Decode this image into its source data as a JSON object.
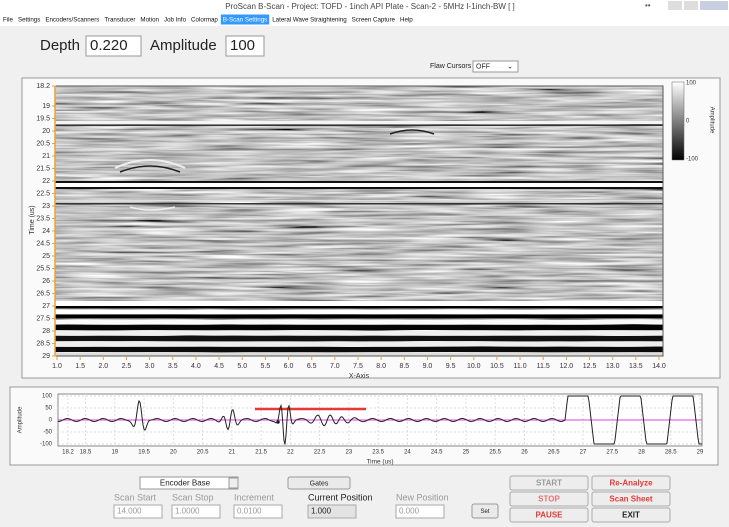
{
  "window": {
    "title": "ProScan B-Scan - Project: TOFD - 1inch API Plate - Scan-2 - 5MHz I-1inch-BW  [  ]"
  },
  "menu": [
    "File",
    "Settings",
    "Encoders/Scanners",
    "Transducer",
    "Motion",
    "Job Info",
    "Colormap",
    "B-Scan Settings",
    "Lateral Wave Straightening",
    "Screen Capture",
    "Help"
  ],
  "readout": {
    "depth_label": "Depth",
    "depth": "0.220",
    "amplitude_label": "Amplitude",
    "amplitude": "100"
  },
  "flaw_cursors": {
    "label": "Flaw Cursors",
    "value": "OFF"
  },
  "bscan": {
    "y_label": "Time (us)",
    "x_label": "X-Axis",
    "yticks": [
      "18.2",
      "19",
      "19.5",
      "20",
      "20.5",
      "21",
      "21.5",
      "22",
      "22.5",
      "23",
      "23.5",
      "24",
      "24.5",
      "25",
      "25.5",
      "26",
      "26.5",
      "27",
      "27.5",
      "28",
      "28.5",
      "29"
    ],
    "xticks": [
      "1.0",
      "1.5",
      "2.0",
      "2.5",
      "3.0",
      "3.5",
      "4.0",
      "4.5",
      "5.0",
      "5.5",
      "6.0",
      "6.5",
      "7.0",
      "7.5",
      "8.0",
      "8.5",
      "9.0",
      "9.5",
      "10.0",
      "10.5",
      "11.0",
      "11.5",
      "12.0",
      "12.5",
      "13.0",
      "13.5",
      "14.0"
    ],
    "colorbar": {
      "label": "Amplitude",
      "ticks": [
        "100",
        "0",
        "-100"
      ]
    }
  },
  "ascan": {
    "y_label": "Amplitude",
    "x_label": "Time (us)",
    "yticks": [
      "100",
      "50",
      "0",
      "-50",
      "-100"
    ],
    "xticks": [
      "18.2",
      "18.5",
      "19",
      "19.5",
      "20",
      "20.5",
      "21",
      "21.5",
      "22",
      "22.5",
      "23",
      "23.5",
      "24",
      "24.5",
      "25",
      "25.5",
      "26",
      "26.5",
      "27",
      "27.5",
      "28",
      "28.5",
      "29"
    ]
  },
  "controls": {
    "encoder": "Encoder Base",
    "gates": "Gates",
    "scan_start_label": "Scan Start",
    "scan_start": "14.000",
    "scan_stop_label": "Scan Stop",
    "scan_stop": "1.0000",
    "increment_label": "Increment",
    "increment": "0.0100",
    "current_position_label": "Current Position",
    "current_position": "1.000",
    "new_position_label": "New Position",
    "new_position": "0.000",
    "set": "Set",
    "start": "START",
    "stop": "STOP",
    "pause": "PAUSE",
    "reanalyze": "Re-Analyze",
    "scan_sheet": "Scan Sheet",
    "exit": "EXIT"
  }
}
